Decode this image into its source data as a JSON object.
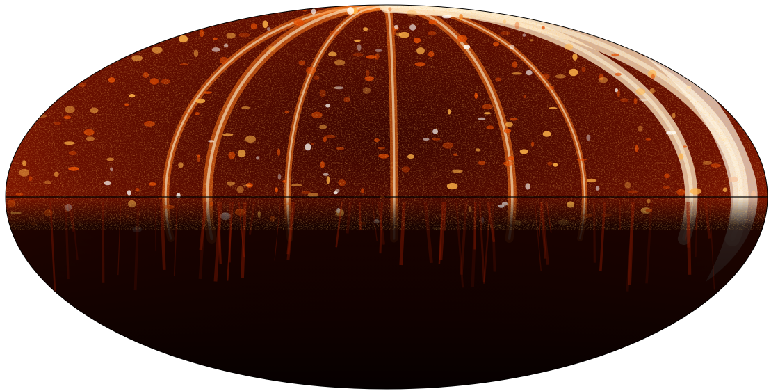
{
  "figure": {
    "projection": "mollweide",
    "colormap": "hot",
    "colors": {
      "background": "#ffffff",
      "outline": "#000000",
      "equator_line": "#000000",
      "low": "#0d0000",
      "mid": "#b32800",
      "high": "#ffffff"
    },
    "equator_line_shown": true,
    "outline_shown": true
  }
}
